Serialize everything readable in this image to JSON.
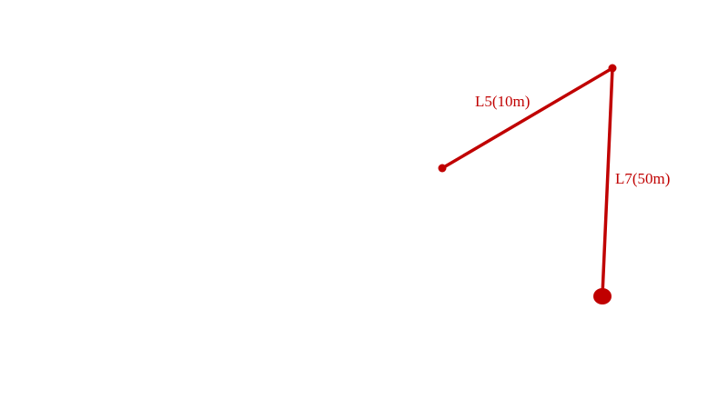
{
  "colors": {
    "line": "#c00000",
    "background": "#ffffff"
  },
  "segments": [
    {
      "label": "L5(10m)"
    },
    {
      "label": "L7(50m)"
    }
  ]
}
